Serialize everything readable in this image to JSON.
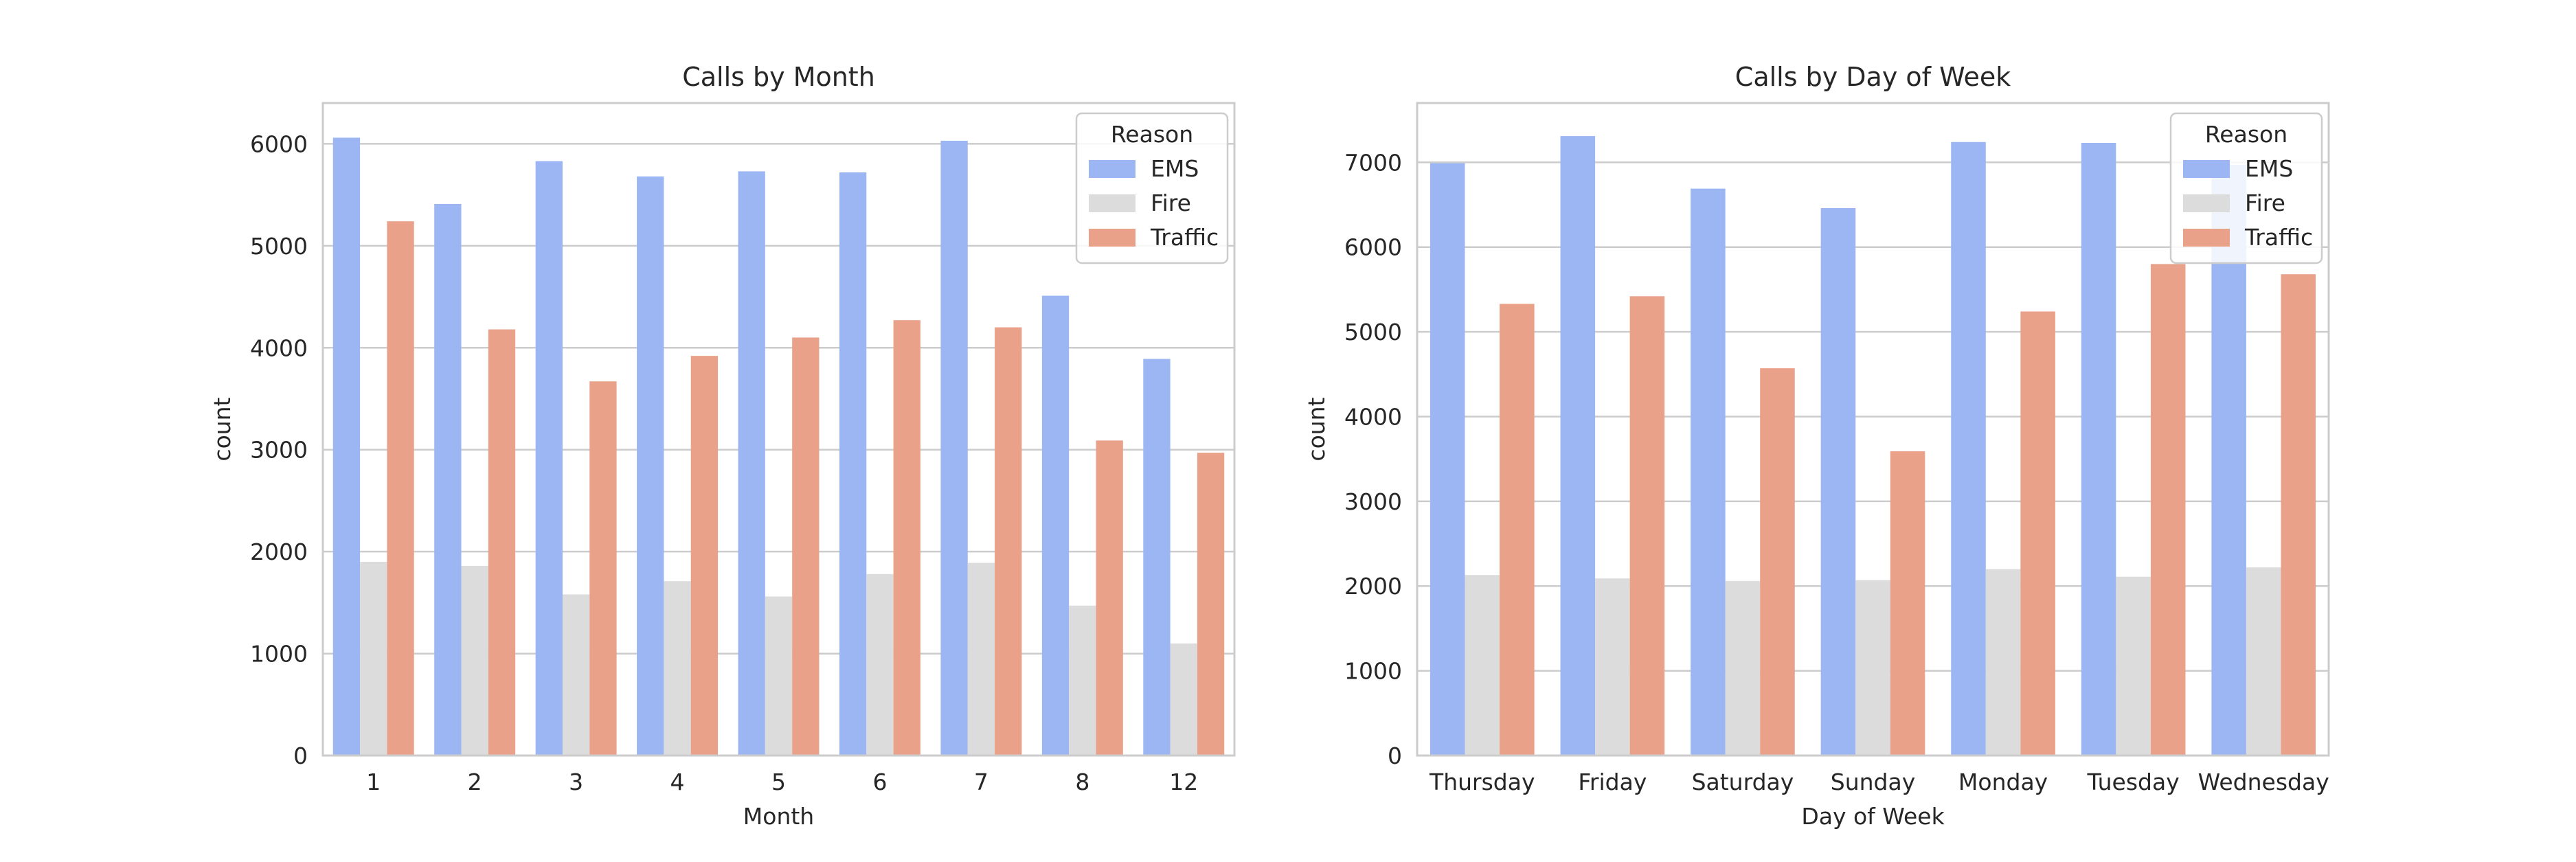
{
  "colors": {
    "EMS": "#9bb6f2",
    "Fire": "#dcdcdc",
    "Traffic": "#e9a189"
  },
  "chart_data": [
    {
      "type": "bar",
      "title": "Calls by Month",
      "xlabel": "Month",
      "ylabel": "count",
      "ylim": [
        0,
        6400
      ],
      "yticks": [
        0,
        1000,
        2000,
        3000,
        4000,
        5000,
        6000
      ],
      "categories": [
        "1",
        "2",
        "3",
        "4",
        "5",
        "6",
        "7",
        "8",
        "12"
      ],
      "legend": {
        "title": "Reason",
        "placement": "upper right"
      },
      "grid": true,
      "series": [
        {
          "name": "EMS",
          "values": [
            6060,
            5410,
            5830,
            5680,
            5730,
            5720,
            6030,
            4510,
            3890
          ]
        },
        {
          "name": "Fire",
          "values": [
            1900,
            1860,
            1580,
            1710,
            1560,
            1780,
            1890,
            1470,
            1100
          ]
        },
        {
          "name": "Traffic",
          "values": [
            5240,
            4180,
            3670,
            3920,
            4100,
            4270,
            4200,
            3090,
            2970
          ]
        }
      ]
    },
    {
      "type": "bar",
      "title": "Calls by Day of Week",
      "xlabel": "Day of Week",
      "ylabel": "count",
      "ylim": [
        0,
        7700
      ],
      "yticks": [
        0,
        1000,
        2000,
        3000,
        4000,
        5000,
        6000,
        7000
      ],
      "categories": [
        "Thursday",
        "Friday",
        "Saturday",
        "Sunday",
        "Monday",
        "Tuesday",
        "Wednesday"
      ],
      "legend": {
        "title": "Reason",
        "placement": "upper right"
      },
      "grid": true,
      "series": [
        {
          "name": "EMS",
          "values": [
            6990,
            7310,
            6690,
            6460,
            7240,
            7230,
            6970
          ]
        },
        {
          "name": "Fire",
          "values": [
            2130,
            2090,
            2060,
            2070,
            2200,
            2110,
            2220
          ]
        },
        {
          "name": "Traffic",
          "values": [
            5330,
            5420,
            4570,
            3590,
            5240,
            5800,
            5680
          ]
        }
      ]
    }
  ]
}
